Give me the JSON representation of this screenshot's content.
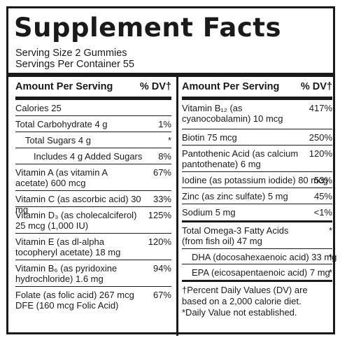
{
  "title": "Supplement Facts",
  "serving_size": "Serving Size 2 Gummies",
  "servings_per_container": "Servings Per Container 55",
  "left_column": {
    "header_amount": "Amount Per Serving",
    "header_dv": "% DV†",
    "rows": [
      {
        "name": "Calories 25",
        "dv": ""
      },
      {
        "name": "Total Carbohydrate 4 g",
        "dv": "1%"
      },
      {
        "name": "Total Sugars 4 g",
        "dv": "*"
      },
      {
        "name": "Includes 4 g Added Sugars",
        "dv": "8%"
      },
      {
        "name": "Vitamin A (as vitamin A acetate) 600 mcg",
        "dv": "67%"
      },
      {
        "name": "Vitamin C (as ascorbic acid) 30 mg",
        "dv": "33%"
      },
      {
        "name": "Vitamin D₃ (as cholecalciferol) 25 mcg (1,000 IU)",
        "dv": "125%"
      },
      {
        "name": "Vitamin E (as dl-alpha tocopheryl acetate) 18 mg",
        "dv": "120%"
      },
      {
        "name": "Vitamin B₆ (as pyridoxine hydrochloride) 1.6 mg",
        "dv": "94%"
      },
      {
        "name": "Folate (as folic acid) 267 mcg DFE (160 mcg Folic Acid)",
        "dv": "67%"
      }
    ]
  },
  "right_column": {
    "header_amount": "Amount Per Serving",
    "header_dv": "% DV†",
    "rows": [
      {
        "name": "Vitamin B₁₂ (as cyanocobalamin) 10 mcg",
        "dv": "417%"
      },
      {
        "name": "Biotin 75 mcg",
        "dv": "250%"
      },
      {
        "name": "Pantothenic Acid (as calcium pantothenate) 6 mg",
        "dv": "120%"
      },
      {
        "name": "Iodine (as potassium iodide) 80 mcg",
        "dv": "53%"
      },
      {
        "name": "Zinc (as zinc sulfate) 5 mg",
        "dv": "45%"
      },
      {
        "name": "Sodium 5 mg",
        "dv": "<1%"
      },
      {
        "name": "Total Omega-3 Fatty Acids (from fish oil) 47 mg",
        "dv": "*"
      },
      {
        "name": "DHA (docosahexaenoic acid) 33 mg",
        "dv": "*"
      },
      {
        "name": "EPA (eicosapentaenoic acid) 7 mg",
        "dv": "*"
      }
    ],
    "footnote_1": "†Percent Daily Values (DV) are based on a 2,000 calorie diet.",
    "footnote_2": "*Daily Value not established."
  }
}
